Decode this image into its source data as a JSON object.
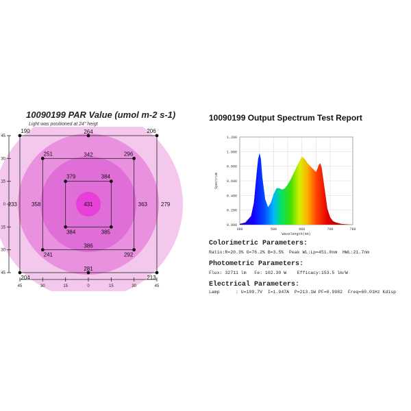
{
  "par": {
    "title": "10090199 PAR Value (umol m-2 s-1)",
    "subtitle": "Light was positioned at 24\" heigt",
    "axis_ticks": [
      "45",
      "30",
      "15",
      "0",
      "15",
      "30",
      "45"
    ],
    "colors": {
      "outer": "#f4c8ec",
      "mid": "#e990de",
      "inner": "#df6fd6",
      "center": "#e83ad8"
    }
  },
  "spectrum": {
    "title": "10090199 Output Spectrum Test Report",
    "colorimetric_heading": "Colorimetric Parameters:",
    "colorimetric_line": "Ratio:R=20.3% G=76.2% B=3.5%  Peak WL:Lp=451.0nm  HWL:21.7nm",
    "photometric_heading": "Photometric Parameters:",
    "photometric_line": "Flux: 32711 lm   Fe: 102.30 W    Efficacy:153.5 lm/W",
    "electrical_heading": "Electrical Parameters:",
    "electrical_line": "Lamp      : U=109.7V  I=1.947A  P=213.1W PF=0.9982  Freq=60.01Hz Kdisp"
  },
  "chart_data": [
    {
      "type": "heatmap",
      "title": "10090199 PAR Value (umol m-2 s-1)",
      "subtitle": "Light was positioned at 24\" heigt",
      "xlim": [
        -45,
        45
      ],
      "ylim": [
        -45,
        45
      ],
      "x_ticks": [
        45,
        30,
        15,
        0,
        15,
        30,
        45
      ],
      "y_ticks": [
        45,
        30,
        15,
        0,
        15,
        30,
        45
      ],
      "points": [
        {
          "x": -45,
          "y": 45,
          "value": 190
        },
        {
          "x": 0,
          "y": 45,
          "value": 264
        },
        {
          "x": 45,
          "y": 45,
          "value": 206
        },
        {
          "x": -30,
          "y": 30,
          "value": 251
        },
        {
          "x": 0,
          "y": 30,
          "value": 342
        },
        {
          "x": 30,
          "y": 30,
          "value": 296
        },
        {
          "x": -15,
          "y": 15,
          "value": 379
        },
        {
          "x": 15,
          "y": 15,
          "value": 384
        },
        {
          "x": 0,
          "y": 0,
          "value": 431
        },
        {
          "x": -45,
          "y": 0,
          "value": 233
        },
        {
          "x": -30,
          "y": 0,
          "value": 358
        },
        {
          "x": 30,
          "y": 0,
          "value": 363
        },
        {
          "x": 45,
          "y": 0,
          "value": 279
        },
        {
          "x": -15,
          "y": -15,
          "value": 384
        },
        {
          "x": 15,
          "y": -15,
          "value": 385
        },
        {
          "x": -30,
          "y": -30,
          "value": 241
        },
        {
          "x": 0,
          "y": -30,
          "value": 386
        },
        {
          "x": 30,
          "y": -30,
          "value": 292
        },
        {
          "x": -45,
          "y": -45,
          "value": 204
        },
        {
          "x": 0,
          "y": -45,
          "value": 281
        },
        {
          "x": 45,
          "y": -45,
          "value": 213
        }
      ]
    },
    {
      "type": "area",
      "title": "10090199 Output Spectrum Test Report",
      "xlabel": "Wavelength(nm)",
      "ylabel": "Spectrum",
      "xlim": [
        380,
        780
      ],
      "ylim": [
        0,
        1.2
      ],
      "x_ticks": [
        380,
        450,
        500,
        550,
        600,
        650,
        700,
        780
      ],
      "x_tick_labels": [
        "380",
        "",
        "500",
        "",
        "600",
        "",
        "700",
        "780"
      ],
      "y_ticks": [
        0,
        0.2,
        0.4,
        0.6,
        0.8,
        1.0,
        1.2
      ],
      "y_tick_labels": [
        "0.000",
        "0.200",
        "0.400",
        "0.600",
        "0.800",
        "1.000",
        "1.200"
      ],
      "grid": true,
      "x": [
        380,
        400,
        420,
        430,
        440,
        445,
        450,
        455,
        460,
        470,
        480,
        490,
        500,
        510,
        520,
        530,
        540,
        550,
        560,
        570,
        580,
        590,
        600,
        610,
        620,
        630,
        640,
        650,
        660,
        665,
        670,
        680,
        690,
        700,
        710,
        720,
        740,
        760,
        780
      ],
      "y": [
        0.01,
        0.03,
        0.12,
        0.3,
        0.72,
        0.9,
        0.98,
        0.9,
        0.65,
        0.35,
        0.24,
        0.3,
        0.42,
        0.5,
        0.5,
        0.48,
        0.5,
        0.55,
        0.62,
        0.7,
        0.78,
        0.86,
        0.93,
        0.9,
        0.84,
        0.8,
        0.76,
        0.72,
        0.82,
        0.84,
        0.78,
        0.5,
        0.22,
        0.1,
        0.05,
        0.03,
        0.01,
        0.005,
        0.0
      ]
    }
  ]
}
